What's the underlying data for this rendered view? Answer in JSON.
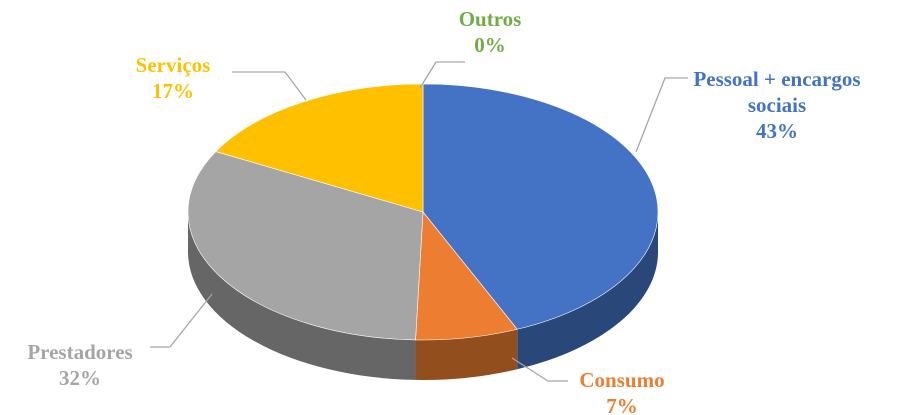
{
  "chart_data": {
    "type": "pie",
    "categories": [
      "Pessoal + encargos sociais",
      "Consumo",
      "Prestadores",
      "Serviços",
      "Outros"
    ],
    "values": [
      43,
      7,
      32,
      17,
      0
    ],
    "value_labels": [
      "43%",
      "7%",
      "32%",
      "17%",
      "0%"
    ],
    "colors": [
      "#4472c4",
      "#ed7d31",
      "#a5a5a5",
      "#ffc000",
      "#70ad47"
    ]
  }
}
